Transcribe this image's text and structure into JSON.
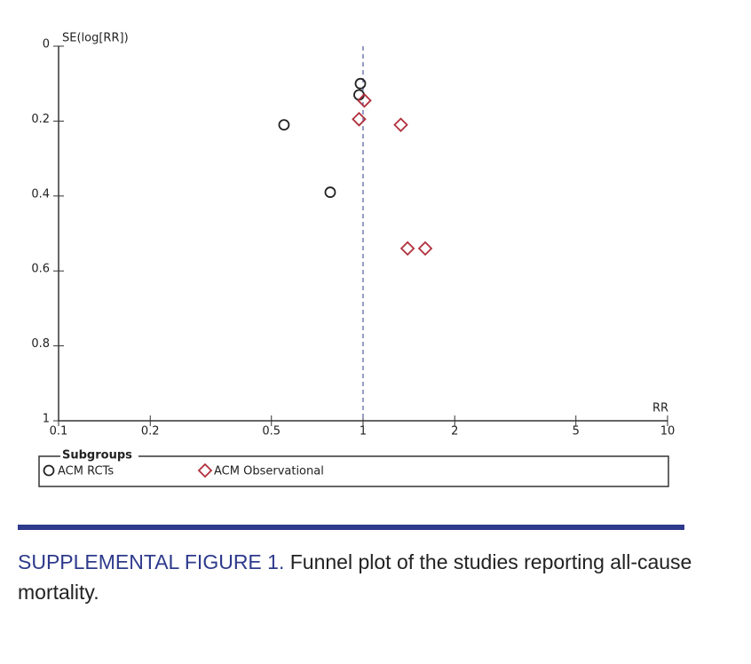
{
  "chart_data": {
    "type": "scatter",
    "y_label": "SE(log[RR])",
    "x_label": "RR",
    "x_log": true,
    "y_reversed": true,
    "xlim": [
      0.1,
      10
    ],
    "xticks": [
      0.1,
      0.2,
      0.5,
      1,
      2,
      5,
      10
    ],
    "ylim": [
      0,
      1
    ],
    "yticks": [
      0,
      0.2,
      0.4,
      0.6,
      0.8,
      1
    ],
    "reference_x": 1,
    "legend_title": "Subgroups",
    "series": [
      {
        "name": "ACM RCTs",
        "marker": "circle",
        "color": "#222222",
        "x": [
          0.98,
          0.97,
          0.55,
          0.78
        ],
        "values": [
          0.1,
          0.13,
          0.21,
          0.39
        ]
      },
      {
        "name": "ACM Observational",
        "marker": "diamond",
        "color": "#b0303c",
        "x": [
          1.01,
          0.97,
          1.33,
          1.4,
          1.6
        ],
        "values": [
          0.145,
          0.195,
          0.21,
          0.54,
          0.54
        ]
      }
    ]
  },
  "caption": {
    "label": "SUPPLEMENTAL FIGURE 1.",
    "text": "Funnel plot of the studies reporting all-cause mortality."
  }
}
